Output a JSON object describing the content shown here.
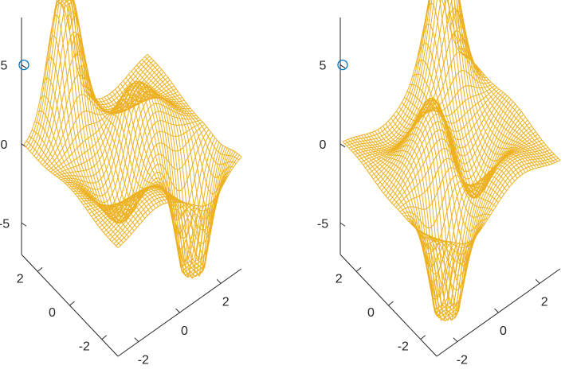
{
  "chart_data": [
    {
      "type": "surface_mesh",
      "view": "rotated",
      "x_range": [
        -3,
        3
      ],
      "y_range": [
        -3,
        3
      ],
      "zlim": [
        -7,
        8
      ],
      "z_ticks": [
        "5",
        "0",
        "-5"
      ],
      "x_ticks": [
        "-2",
        "0",
        "2"
      ],
      "y_ticks": [
        "2",
        "0",
        "-2"
      ],
      "mesh_color": "#edb120",
      "marker": {
        "x": -3,
        "y": 3,
        "z": 5,
        "symbol": "circle",
        "color": "#0072bd"
      }
    },
    {
      "type": "surface_mesh",
      "view": "rotated",
      "x_range": [
        -3,
        3
      ],
      "y_range": [
        -3,
        3
      ],
      "zlim": [
        -7,
        8
      ],
      "z_ticks": [
        "5",
        "0",
        "-5"
      ],
      "x_ticks": [
        "-2",
        "0",
        "2"
      ],
      "y_ticks": [
        "2",
        "0",
        "-2"
      ],
      "mesh_color": "#edb120",
      "marker": {
        "x": -3,
        "y": 3,
        "z": 5,
        "symbol": "circle",
        "color": "#0072bd"
      }
    }
  ]
}
